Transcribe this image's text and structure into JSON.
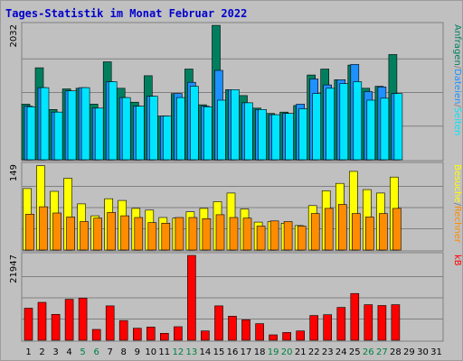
{
  "title": "Tages-Statistik im Monat Februar 2022",
  "colors": {
    "anfragen": "#007f5f",
    "dateien": "#1e90ff",
    "seiten": "#00e5ff",
    "besuche": "#ffff00",
    "rechner": "#ff8c00",
    "kb": "#ff0000",
    "weekend": "#008040",
    "weekday": "#000000",
    "panel_bg": "#c0c0c0",
    "grid": "#808080"
  },
  "chart_data": [
    {
      "type": "bar",
      "name": "hits-files-pages",
      "ymax_label": "2032",
      "ylim": [
        0,
        2032
      ],
      "right_labels": [
        "Anfragen",
        "/",
        "Dateien",
        "/",
        "Seiten"
      ],
      "x": [
        1,
        2,
        3,
        4,
        5,
        6,
        7,
        8,
        9,
        10,
        11,
        12,
        13,
        14,
        15,
        16,
        17,
        18,
        19,
        20,
        21,
        22,
        23,
        24,
        25,
        26,
        27,
        28
      ],
      "series": [
        {
          "name": "Anfragen",
          "values": [
            840,
            1390,
            760,
            1070,
            1080,
            840,
            1480,
            1080,
            870,
            1270,
            660,
            1000,
            1370,
            830,
            2030,
            1060,
            970,
            780,
            700,
            720,
            820,
            1280,
            1370,
            1210,
            1430,
            1080,
            1110,
            1590
          ]
        },
        {
          "name": "Dateien",
          "values": [
            810,
            1090,
            720,
            1040,
            1090,
            780,
            1180,
            940,
            810,
            960,
            660,
            1000,
            1170,
            810,
            1350,
            1060,
            860,
            760,
            680,
            700,
            840,
            1220,
            1130,
            1210,
            1440,
            1030,
            1100,
            1000
          ]
        },
        {
          "name": "Seiten",
          "values": [
            800,
            1090,
            720,
            1040,
            1090,
            780,
            1180,
            940,
            810,
            960,
            660,
            940,
            1110,
            800,
            900,
            1060,
            860,
            760,
            680,
            700,
            770,
            1000,
            1080,
            1150,
            1180,
            900,
            930,
            1000
          ]
        }
      ]
    },
    {
      "type": "bar",
      "name": "visits-sites",
      "ymax_label": "149",
      "ylim": [
        0,
        149
      ],
      "right_labels": [
        "Besuche",
        "/",
        "Rechner"
      ],
      "x": [
        1,
        2,
        3,
        4,
        5,
        6,
        7,
        8,
        9,
        10,
        11,
        12,
        13,
        14,
        15,
        16,
        17,
        18,
        19,
        20,
        21,
        22,
        23,
        24,
        25,
        26,
        27,
        28
      ],
      "series": [
        {
          "name": "Besuche",
          "values": [
            108,
            148,
            103,
            126,
            81,
            60,
            90,
            87,
            73,
            70,
            57,
            56,
            67,
            73,
            85,
            100,
            72,
            49,
            50,
            47,
            43,
            78,
            104,
            117,
            138,
            106,
            100,
            128
          ]
        },
        {
          "name": "Rechner",
          "values": [
            63,
            76,
            65,
            58,
            50,
            56,
            66,
            60,
            57,
            48,
            47,
            57,
            57,
            55,
            62,
            57,
            56,
            42,
            51,
            50,
            42,
            64,
            73,
            80,
            64,
            58,
            64,
            73
          ]
        }
      ]
    },
    {
      "type": "bar",
      "name": "traffic-kb",
      "ymax_label": "21947",
      "ylim": [
        0,
        21947
      ],
      "right_labels": [
        "kB"
      ],
      "x": [
        1,
        2,
        3,
        4,
        5,
        6,
        7,
        8,
        9,
        10,
        11,
        12,
        13,
        14,
        15,
        16,
        17,
        18,
        19,
        20,
        21,
        22,
        23,
        24,
        25,
        26,
        27,
        28
      ],
      "series": [
        {
          "name": "kB",
          "values": [
            8300,
            9800,
            6700,
            10600,
            10900,
            2800,
            8900,
            5100,
            3100,
            3400,
            1800,
            3500,
            21947,
            2400,
            8900,
            6200,
            5300,
            4300,
            1400,
            2000,
            2400,
            6400,
            6600,
            8500,
            12100,
            9200,
            9000,
            9200
          ]
        }
      ]
    }
  ],
  "x_axis": {
    "days": [
      "1",
      "2",
      "3",
      "4",
      "5",
      "6",
      "7",
      "8",
      "9",
      "10",
      "11",
      "12",
      "13",
      "14",
      "15",
      "16",
      "17",
      "18",
      "19",
      "20",
      "21",
      "22",
      "23",
      "24",
      "25",
      "26",
      "27",
      "28",
      "29",
      "30",
      "31"
    ],
    "weekend_days": [
      5,
      6,
      12,
      13,
      19,
      20,
      26,
      27
    ]
  }
}
